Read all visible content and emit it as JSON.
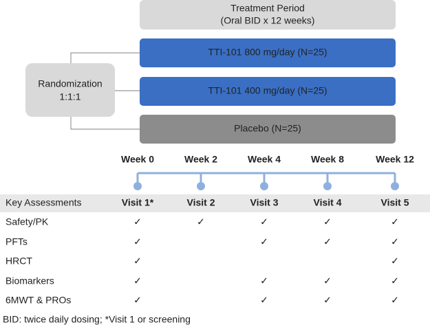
{
  "treatment_period": {
    "lines": [
      "Treatment Period",
      "(Oral BID x 12 weeks)"
    ]
  },
  "randomization": {
    "lines": [
      "Randomization",
      "1:1:1"
    ]
  },
  "arms": [
    {
      "label": "TTI-101 800 mg/day (N=25)",
      "color": "#3a6fc4"
    },
    {
      "label": "TTI-101 400 mg/day (N=25)",
      "color": "#3a6fc4"
    },
    {
      "label": "Placebo (N=25)",
      "color": "#8c8c8c"
    }
  ],
  "weeks": [
    "Week 0",
    "Week 2",
    "Week 4",
    "Week 8",
    "Week 12"
  ],
  "table": {
    "header": [
      "Key Assessments",
      "Visit 1*",
      "Visit 2",
      "Visit 3",
      "Visit 4",
      "Visit 5"
    ],
    "rows": [
      [
        "Safety/PK",
        "✓",
        "✓",
        "✓",
        "✓",
        "✓"
      ],
      [
        "PFTs",
        "✓",
        null,
        "✓",
        "✓",
        "✓"
      ],
      [
        "HRCT",
        "✓",
        null,
        null,
        null,
        "✓"
      ],
      [
        "Biomarkers",
        "✓",
        null,
        "✓",
        "✓",
        "✓"
      ],
      [
        "6MWT & PROs",
        "✓",
        null,
        "✓",
        "✓",
        "✓"
      ]
    ]
  },
  "footnote": "BID: twice daily dosing; *Visit 1 or screening"
}
